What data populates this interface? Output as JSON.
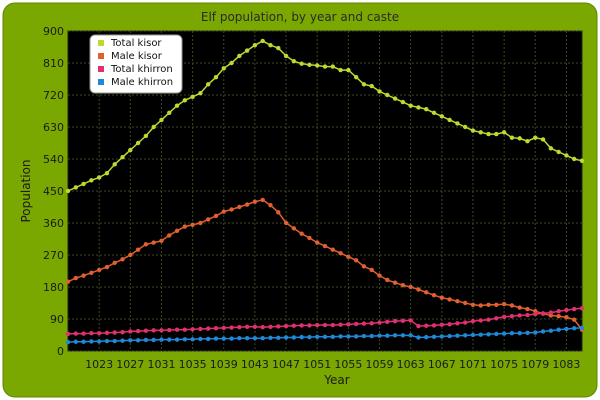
{
  "chart_data": {
    "type": "line",
    "title": "Elf population, by year and caste",
    "xlabel": "Year",
    "ylabel": "Population",
    "xlim": [
      1019,
      1085
    ],
    "ylim": [
      0,
      900
    ],
    "x_ticks": [
      1023,
      1027,
      1031,
      1035,
      1039,
      1043,
      1047,
      1051,
      1055,
      1059,
      1063,
      1067,
      1071,
      1075,
      1079,
      1083
    ],
    "y_ticks": [
      0,
      90,
      180,
      270,
      360,
      450,
      540,
      630,
      720,
      810,
      900
    ],
    "grid": true,
    "legend": "top-left",
    "colors": {
      "frame": "#7aa800",
      "plot_bg": "#000000",
      "grid": "#3a4a20"
    },
    "x": [
      1019,
      1020,
      1021,
      1022,
      1023,
      1024,
      1025,
      1026,
      1027,
      1028,
      1029,
      1030,
      1031,
      1032,
      1033,
      1034,
      1035,
      1036,
      1037,
      1038,
      1039,
      1040,
      1041,
      1042,
      1043,
      1044,
      1045,
      1046,
      1047,
      1048,
      1049,
      1050,
      1051,
      1052,
      1053,
      1054,
      1055,
      1056,
      1057,
      1058,
      1059,
      1060,
      1061,
      1062,
      1063,
      1064,
      1065,
      1066,
      1067,
      1068,
      1069,
      1070,
      1071,
      1072,
      1073,
      1074,
      1075,
      1076,
      1077,
      1078,
      1079,
      1080,
      1081,
      1082,
      1083,
      1084,
      1085
    ],
    "series": [
      {
        "name": "Total kisor",
        "color": "#c0d830",
        "values": [
          450,
          460,
          470,
          480,
          488,
          500,
          525,
          545,
          565,
          585,
          605,
          630,
          650,
          670,
          690,
          705,
          715,
          725,
          750,
          770,
          795,
          810,
          830,
          845,
          860,
          872,
          860,
          852,
          830,
          815,
          808,
          805,
          803,
          800,
          800,
          790,
          790,
          770,
          750,
          745,
          730,
          720,
          710,
          700,
          690,
          685,
          680,
          670,
          660,
          650,
          640,
          630,
          620,
          615,
          610,
          610,
          615,
          600,
          598,
          590,
          600,
          595,
          570,
          560,
          550,
          540,
          535
        ]
      },
      {
        "name": "Male kisor",
        "color": "#e06030",
        "values": [
          195,
          205,
          212,
          220,
          228,
          236,
          248,
          258,
          270,
          285,
          300,
          305,
          310,
          325,
          338,
          350,
          355,
          360,
          370,
          380,
          392,
          398,
          405,
          412,
          420,
          425,
          410,
          390,
          360,
          345,
          330,
          318,
          305,
          295,
          285,
          275,
          265,
          255,
          238,
          228,
          212,
          200,
          192,
          185,
          180,
          173,
          165,
          157,
          150,
          145,
          140,
          135,
          130,
          128,
          130,
          130,
          132,
          128,
          122,
          118,
          112,
          105,
          100,
          98,
          95,
          88,
          60
        ]
      },
      {
        "name": "Total khirron",
        "color": "#e03070",
        "values": [
          48,
          49,
          49,
          50,
          50,
          51,
          52,
          53,
          55,
          56,
          57,
          58,
          58,
          59,
          60,
          60,
          61,
          62,
          63,
          64,
          65,
          66,
          67,
          68,
          68,
          67,
          68,
          69,
          70,
          71,
          72,
          72,
          73,
          73,
          73,
          74,
          75,
          76,
          77,
          78,
          80,
          82,
          84,
          85,
          86,
          70,
          71,
          72,
          74,
          75,
          78,
          80,
          84,
          86,
          88,
          92,
          96,
          98,
          100,
          101,
          104,
          106,
          108,
          112,
          115,
          118,
          120
        ]
      },
      {
        "name": "Male khirron",
        "color": "#2088d8",
        "values": [
          25,
          26,
          26,
          27,
          27,
          28,
          28,
          29,
          30,
          30,
          31,
          31,
          32,
          32,
          32,
          33,
          33,
          34,
          34,
          35,
          35,
          35,
          36,
          36,
          36,
          36,
          37,
          37,
          38,
          38,
          39,
          39,
          40,
          40,
          40,
          41,
          41,
          41,
          42,
          42,
          43,
          43,
          44,
          44,
          44,
          38,
          39,
          40,
          41,
          42,
          43,
          44,
          45,
          46,
          47,
          48,
          49,
          50,
          50,
          51,
          52,
          55,
          57,
          60,
          62,
          64,
          65
        ]
      }
    ]
  }
}
